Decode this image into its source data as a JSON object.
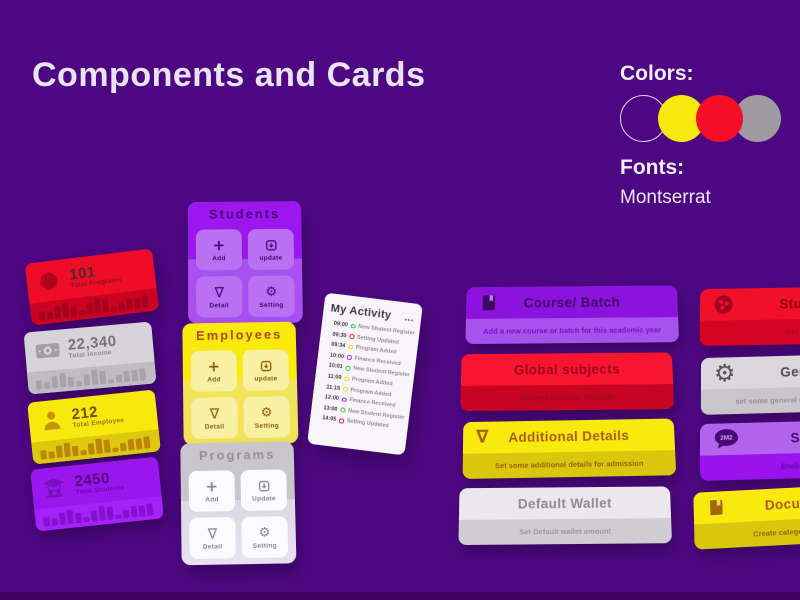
{
  "page": {
    "title": "Components and Cards",
    "colors_label": "Colors:",
    "fonts_label": "Fonts:",
    "font_name": "Montserrat",
    "background": "#4d0782",
    "palette": [
      {
        "name": "purple-outline",
        "fill": "none",
        "border": "#ded6ea"
      },
      {
        "name": "yellow",
        "fill": "#f7e90e"
      },
      {
        "name": "red",
        "fill": "#f60e26"
      },
      {
        "name": "gray",
        "fill": "#9d9b9f"
      }
    ]
  },
  "icon_glyphs": {
    "plus": "+",
    "nabla": "∇",
    "gear": "⚙",
    "dots": "•••"
  },
  "decoration": {
    "bars": [
      9,
      7,
      12,
      14,
      10,
      5,
      11,
      15,
      13,
      4,
      8,
      11,
      11,
      12
    ]
  },
  "stat_cards": [
    {
      "icon": "hexagon-icon",
      "value": "101",
      "label": "Total Programs",
      "theme": "red"
    },
    {
      "icon": "banknote-icon",
      "value": "22,340",
      "label": "Total Income",
      "theme": "gray"
    },
    {
      "icon": "person-icon",
      "value": "212",
      "label": "Total Employee",
      "theme": "yellow"
    },
    {
      "icon": "graduate-icon",
      "value": "2450",
      "label": "Total Students",
      "theme": "purple"
    }
  ],
  "action_cards": [
    {
      "title": "Students",
      "theme": "purple",
      "buttons": [
        {
          "label": "Add",
          "icon": "plus-icon"
        },
        {
          "label": "update",
          "icon": "update-icon"
        },
        {
          "label": "Detail",
          "icon": "triangle-icon"
        },
        {
          "label": "Setting",
          "icon": "gear-icon"
        }
      ]
    },
    {
      "title": "Employees",
      "theme": "yellow",
      "buttons": [
        {
          "label": "Add",
          "icon": "plus-icon"
        },
        {
          "label": "update",
          "icon": "update-icon"
        },
        {
          "label": "Detail",
          "icon": "triangle-icon"
        },
        {
          "label": "Setting",
          "icon": "gear-icon"
        }
      ]
    },
    {
      "title": "Programs",
      "theme": "gray",
      "buttons": [
        {
          "label": "Add",
          "icon": "plus-icon"
        },
        {
          "label": "Update",
          "icon": "update-icon"
        },
        {
          "label": "Detail",
          "icon": "triangle-icon"
        },
        {
          "label": "Setting",
          "icon": "gear-icon"
        }
      ]
    }
  ],
  "activity": {
    "title": "My Activity",
    "menu_icon": "•••",
    "items": [
      {
        "time": "09:00",
        "label": "New Student Register",
        "color": "#3bc24a"
      },
      {
        "time": "09:30",
        "label": "Setting Updated",
        "color": "#ee1038"
      },
      {
        "time": "09:34",
        "label": "Program Added",
        "color": "#eedc0e"
      },
      {
        "time": "10:00",
        "label": "Finance Received",
        "color": "#9b2bf0"
      },
      {
        "time": "10:01",
        "label": "New Student Register",
        "color": "#3bc24a"
      },
      {
        "time": "11:00",
        "label": "Program Added",
        "color": "#eedc0e"
      },
      {
        "time": "11:15",
        "label": "Program Added",
        "color": "#eedc0e"
      },
      {
        "time": "12:00",
        "label": "Finance Received",
        "color": "#9b2bf0"
      },
      {
        "time": "13:00",
        "label": "New Student Register",
        "color": "#3bc24a"
      },
      {
        "time": "14:05",
        "label": "Setting Updated",
        "color": "#ee1038"
      }
    ]
  },
  "banners": [
    {
      "title": "Course/ Batch",
      "description": "Add a new course or batch for this academic year",
      "icon": "book-icon",
      "theme": "purple"
    },
    {
      "title": "Student",
      "description": "add student",
      "icon": "group-icon",
      "theme": "red"
    },
    {
      "title": "Global subjects",
      "description": "Manage Subjects Globally",
      "icon": "none",
      "theme": "red"
    },
    {
      "title": "General",
      "description": "set some general con institute, students",
      "icon": "gear-icon",
      "theme": "gray"
    },
    {
      "title": "Additional Details",
      "description": "Set some additional details for admission",
      "icon": "triangle-icon",
      "theme": "yellow"
    },
    {
      "title": "SMS",
      "description": "Enable / disab",
      "icon": "chat-bubble-icon",
      "icon_text": "2M2",
      "theme": "violet"
    },
    {
      "title": "Default Wallet",
      "description": "Set Default wallet amount",
      "icon": "none",
      "theme": "white"
    },
    {
      "title": "Document",
      "description": "Create categories for docu",
      "icon": "book-icon",
      "theme": "yellow"
    }
  ]
}
